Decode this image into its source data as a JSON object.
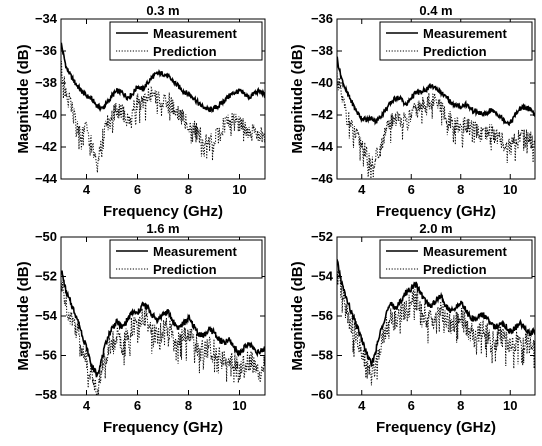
{
  "chart_data": [
    {
      "type": "line",
      "title": "0.3 m",
      "xlabel": "Frequency (GHz)",
      "ylabel": "Magnitude (dB)",
      "xlim": [
        3,
        11
      ],
      "ylim": [
        -44,
        -34
      ],
      "xticks": [
        4,
        6,
        8,
        10
      ],
      "yticks": [
        -44,
        -42,
        -40,
        -38,
        -36,
        -34
      ],
      "legend": "top-right",
      "series": [
        {
          "name": "Measurement",
          "style": "solid",
          "x": [
            3.0,
            3.2,
            3.4,
            3.6,
            3.8,
            4.0,
            4.2,
            4.4,
            4.6,
            4.8,
            5.0,
            5.2,
            5.4,
            5.6,
            5.8,
            6.0,
            6.2,
            6.4,
            6.6,
            6.8,
            7.0,
            7.2,
            7.4,
            7.6,
            7.8,
            8.0,
            8.2,
            8.4,
            8.6,
            8.8,
            9.0,
            9.2,
            9.4,
            9.6,
            9.8,
            10.0,
            10.2,
            10.4,
            10.6,
            10.8,
            11.0
          ],
          "y": [
            -35.5,
            -37.0,
            -37.6,
            -38.1,
            -38.5,
            -38.8,
            -39.0,
            -39.4,
            -39.6,
            -39.3,
            -38.8,
            -38.5,
            -38.6,
            -38.9,
            -38.7,
            -38.2,
            -38.4,
            -38.0,
            -37.6,
            -37.4,
            -37.4,
            -37.6,
            -37.9,
            -38.2,
            -38.5,
            -38.7,
            -38.9,
            -39.3,
            -39.5,
            -39.7,
            -39.6,
            -39.4,
            -39.1,
            -38.8,
            -38.6,
            -38.5,
            -38.7,
            -38.9,
            -38.6,
            -38.5,
            -38.8
          ]
        },
        {
          "name": "Prediction",
          "style": "dotted",
          "x": [
            3.0,
            3.2,
            3.4,
            3.6,
            3.8,
            4.0,
            4.2,
            4.4,
            4.6,
            4.8,
            5.0,
            5.2,
            5.4,
            5.6,
            5.8,
            6.0,
            6.2,
            6.4,
            6.6,
            6.8,
            7.0,
            7.2,
            7.4,
            7.6,
            7.8,
            8.0,
            8.2,
            8.4,
            8.6,
            8.8,
            9.0,
            9.2,
            9.4,
            9.6,
            9.8,
            10.0,
            10.2,
            10.4,
            10.6,
            10.8,
            11.0
          ],
          "y": [
            -37.0,
            -38.5,
            -39.5,
            -40.5,
            -41.2,
            -40.8,
            -41.8,
            -42.8,
            -41.5,
            -40.6,
            -40.0,
            -39.6,
            -39.8,
            -40.4,
            -39.8,
            -39.1,
            -39.4,
            -38.8,
            -38.6,
            -38.9,
            -39.3,
            -39.0,
            -39.5,
            -39.9,
            -40.2,
            -40.5,
            -40.8,
            -41.2,
            -41.5,
            -41.8,
            -41.5,
            -41.0,
            -40.6,
            -40.3,
            -40.2,
            -40.5,
            -40.8,
            -41.3,
            -41.0,
            -41.2,
            -41.6
          ]
        }
      ]
    },
    {
      "type": "line",
      "title": "0.4 m",
      "xlabel": "Frequency (GHz)",
      "ylabel": "Magnitude (dB)",
      "xlim": [
        3,
        11
      ],
      "ylim": [
        -46,
        -36
      ],
      "xticks": [
        4,
        6,
        8,
        10
      ],
      "yticks": [
        -46,
        -44,
        -42,
        -40,
        -38,
        -36
      ],
      "legend": "top-right",
      "series": [
        {
          "name": "Measurement",
          "style": "solid",
          "x": [
            3.0,
            3.2,
            3.4,
            3.6,
            3.8,
            4.0,
            4.2,
            4.4,
            4.6,
            4.8,
            5.0,
            5.2,
            5.4,
            5.6,
            5.8,
            6.0,
            6.2,
            6.4,
            6.6,
            6.8,
            7.0,
            7.2,
            7.4,
            7.6,
            7.8,
            8.0,
            8.2,
            8.4,
            8.6,
            8.8,
            9.0,
            9.2,
            9.4,
            9.6,
            9.8,
            10.0,
            10.2,
            10.4,
            10.6,
            10.8,
            11.0
          ],
          "y": [
            -38.5,
            -39.8,
            -40.6,
            -41.2,
            -41.8,
            -42.2,
            -42.3,
            -42.2,
            -42.4,
            -42.0,
            -41.6,
            -41.2,
            -40.9,
            -41.0,
            -41.4,
            -40.9,
            -40.6,
            -40.6,
            -40.4,
            -40.2,
            -40.3,
            -40.6,
            -40.9,
            -41.2,
            -41.4,
            -41.5,
            -41.3,
            -41.6,
            -41.8,
            -41.9,
            -42.0,
            -41.7,
            -41.8,
            -42.1,
            -42.4,
            -42.5,
            -42.0,
            -41.6,
            -41.5,
            -41.7,
            -42.0
          ]
        },
        {
          "name": "Prediction",
          "style": "dotted",
          "x": [
            3.0,
            3.2,
            3.4,
            3.6,
            3.8,
            4.0,
            4.2,
            4.4,
            4.6,
            4.8,
            5.0,
            5.2,
            5.4,
            5.6,
            5.8,
            6.0,
            6.2,
            6.4,
            6.6,
            6.8,
            7.0,
            7.2,
            7.4,
            7.6,
            7.8,
            8.0,
            8.2,
            8.4,
            8.6,
            8.8,
            9.0,
            9.2,
            9.4,
            9.6,
            9.8,
            10.0,
            10.2,
            10.4,
            10.6,
            10.8,
            11.0
          ],
          "y": [
            -39.5,
            -41.0,
            -42.0,
            -42.8,
            -43.4,
            -43.8,
            -44.5,
            -45.2,
            -44.6,
            -43.8,
            -43.0,
            -42.4,
            -42.0,
            -42.2,
            -42.5,
            -42.0,
            -41.6,
            -41.5,
            -41.2,
            -41.0,
            -41.2,
            -41.6,
            -42.0,
            -42.3,
            -42.6,
            -42.8,
            -42.6,
            -42.8,
            -43.0,
            -43.2,
            -43.3,
            -43.0,
            -43.2,
            -43.5,
            -43.8,
            -44.0,
            -43.6,
            -43.2,
            -43.2,
            -43.5,
            -43.8
          ]
        }
      ]
    },
    {
      "type": "line",
      "title": "1.6 m",
      "xlabel": "Frequency (GHz)",
      "ylabel": "Magnitude (dB)",
      "xlim": [
        3,
        11
      ],
      "ylim": [
        -58,
        -50
      ],
      "xticks": [
        4,
        6,
        8,
        10
      ],
      "yticks": [
        -58,
        -56,
        -54,
        -52,
        -50
      ],
      "legend": "top-right",
      "series": [
        {
          "name": "Measurement",
          "style": "solid",
          "x": [
            3.0,
            3.2,
            3.4,
            3.6,
            3.8,
            4.0,
            4.2,
            4.4,
            4.6,
            4.8,
            5.0,
            5.2,
            5.4,
            5.6,
            5.8,
            6.0,
            6.2,
            6.4,
            6.6,
            6.8,
            7.0,
            7.2,
            7.4,
            7.6,
            7.8,
            8.0,
            8.2,
            8.4,
            8.6,
            8.8,
            9.0,
            9.2,
            9.4,
            9.6,
            9.8,
            10.0,
            10.2,
            10.4,
            10.6,
            10.8,
            11.0
          ],
          "y": [
            -51.6,
            -52.8,
            -53.4,
            -54.0,
            -54.8,
            -55.6,
            -56.5,
            -57.0,
            -56.2,
            -55.2,
            -54.6,
            -54.3,
            -54.6,
            -54.2,
            -53.8,
            -53.9,
            -53.4,
            -53.6,
            -54.0,
            -54.2,
            -53.9,
            -53.8,
            -54.3,
            -54.6,
            -54.4,
            -54.1,
            -54.5,
            -54.9,
            -55.0,
            -54.7,
            -54.8,
            -55.2,
            -55.4,
            -55.2,
            -55.6,
            -55.9,
            -55.6,
            -55.4,
            -55.7,
            -55.9,
            -55.6
          ]
        },
        {
          "name": "Prediction",
          "style": "dotted",
          "x": [
            3.0,
            3.2,
            3.4,
            3.6,
            3.8,
            4.0,
            4.2,
            4.4,
            4.6,
            4.8,
            5.0,
            5.2,
            5.4,
            5.6,
            5.8,
            6.0,
            6.2,
            6.4,
            6.6,
            6.8,
            7.0,
            7.2,
            7.4,
            7.6,
            7.8,
            8.0,
            8.2,
            8.4,
            8.6,
            8.8,
            9.0,
            9.2,
            9.4,
            9.6,
            9.8,
            10.0,
            10.2,
            10.4,
            10.6,
            10.8,
            11.0
          ],
          "y": [
            -52.2,
            -53.4,
            -54.0,
            -54.6,
            -55.3,
            -56.2,
            -57.0,
            -57.6,
            -56.8,
            -55.8,
            -55.2,
            -55.0,
            -55.4,
            -55.0,
            -54.5,
            -54.6,
            -54.0,
            -54.3,
            -54.8,
            -55.0,
            -54.7,
            -54.6,
            -55.0,
            -55.3,
            -55.1,
            -54.9,
            -55.2,
            -55.6,
            -55.8,
            -55.5,
            -55.6,
            -56.0,
            -56.3,
            -56.0,
            -56.4,
            -56.7,
            -56.4,
            -56.2,
            -56.5,
            -56.8,
            -56.5
          ]
        }
      ]
    },
    {
      "type": "line",
      "title": "2.0 m",
      "xlabel": "Frequency (GHz)",
      "ylabel": "Magnitude (dB)",
      "xlim": [
        3,
        11
      ],
      "ylim": [
        -60,
        -52
      ],
      "xticks": [
        4,
        6,
        8,
        10
      ],
      "yticks": [
        -60,
        -58,
        -56,
        -54,
        -52
      ],
      "legend": "top-right",
      "series": [
        {
          "name": "Measurement",
          "style": "solid",
          "x": [
            3.0,
            3.2,
            3.4,
            3.6,
            3.8,
            4.0,
            4.2,
            4.4,
            4.6,
            4.8,
            5.0,
            5.2,
            5.4,
            5.6,
            5.8,
            6.0,
            6.2,
            6.4,
            6.6,
            6.8,
            7.0,
            7.2,
            7.4,
            7.6,
            7.8,
            8.0,
            8.2,
            8.4,
            8.6,
            8.8,
            9.0,
            9.2,
            9.4,
            9.6,
            9.8,
            10.0,
            10.2,
            10.4,
            10.6,
            10.8,
            11.0
          ],
          "y": [
            -53.2,
            -54.4,
            -55.2,
            -55.9,
            -56.5,
            -57.2,
            -57.9,
            -58.5,
            -57.6,
            -56.6,
            -55.8,
            -55.4,
            -55.6,
            -55.2,
            -54.8,
            -54.6,
            -54.4,
            -54.9,
            -55.3,
            -55.5,
            -55.2,
            -55.0,
            -55.5,
            -55.8,
            -55.6,
            -55.3,
            -55.7,
            -56.1,
            -56.2,
            -55.9,
            -56.0,
            -56.4,
            -56.6,
            -56.3,
            -56.5,
            -56.8,
            -56.6,
            -56.4,
            -56.6,
            -56.9,
            -56.7
          ]
        },
        {
          "name": "Prediction",
          "style": "dotted",
          "x": [
            3.0,
            3.2,
            3.4,
            3.6,
            3.8,
            4.0,
            4.2,
            4.4,
            4.6,
            4.8,
            5.0,
            5.2,
            5.4,
            5.6,
            5.8,
            6.0,
            6.2,
            6.4,
            6.6,
            6.8,
            7.0,
            7.2,
            7.4,
            7.6,
            7.8,
            8.0,
            8.2,
            8.4,
            8.6,
            8.8,
            9.0,
            9.2,
            9.4,
            9.6,
            9.8,
            10.0,
            10.2,
            10.4,
            10.6,
            10.8,
            11.0
          ],
          "y": [
            -53.8,
            -55.0,
            -55.8,
            -56.5,
            -57.2,
            -57.9,
            -58.6,
            -59.1,
            -58.2,
            -57.2,
            -56.5,
            -56.1,
            -56.3,
            -55.9,
            -55.5,
            -55.3,
            -55.1,
            -55.6,
            -56.0,
            -56.2,
            -55.9,
            -55.7,
            -56.2,
            -56.5,
            -56.3,
            -56.0,
            -56.4,
            -56.8,
            -56.9,
            -56.6,
            -56.7,
            -57.1,
            -57.3,
            -57.0,
            -57.2,
            -57.5,
            -57.3,
            -57.1,
            -57.3,
            -57.6,
            -57.4
          ]
        }
      ]
    }
  ]
}
